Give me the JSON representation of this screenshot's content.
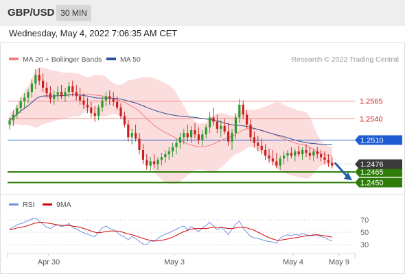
{
  "header": {
    "symbol": "GBP/USD",
    "timeframe": "30 MIN"
  },
  "datetime": "Wednesday, May 4, 2022 7:06:35 AM CET",
  "legend": {
    "ma20": "MA 20 + Bollinger Bands",
    "ma50": "MA 50",
    "copyright": "Research © 2022 Trading Central",
    "rsi": "RSI",
    "rsi_ma": "9MA"
  },
  "colors": {
    "candle_up": "#2b9a2b",
    "candle_down": "#cc1f1f",
    "bollinger_fill": "#fcd7d7",
    "ma20": "#f08080",
    "ma50": "#2e4f99",
    "support": "#2e7d0a",
    "resistance": "#f08a8a",
    "pivot": "#1f5bd1",
    "current": "#3a3a3a",
    "arrow": "#1f5fa8",
    "rsi": "#6f8fe0",
    "rsi_ma": "#d40000"
  },
  "chart_data": [
    {
      "type": "candlestick",
      "title": "GBP/USD 30 MIN",
      "x_ticks": [
        "Apr 30",
        "May 3",
        "May 4",
        "May 9"
      ],
      "ylim": [
        1.2435,
        1.2615
      ],
      "levels": [
        {
          "value": 1.2565,
          "label": "1.2565",
          "kind": "resistance"
        },
        {
          "value": 1.254,
          "label": "1.2540",
          "kind": "resistance"
        },
        {
          "value": 1.251,
          "label": "1.2510",
          "kind": "pivot"
        },
        {
          "value": 1.2465,
          "label": "1.2465",
          "kind": "support"
        },
        {
          "value": 1.245,
          "label": "1.2450",
          "kind": "support"
        }
      ],
      "current_price": {
        "value": 1.2476,
        "label": "1.2476"
      },
      "forecast_arrow": {
        "from": 1.2478,
        "to": 1.2456,
        "direction": "down"
      },
      "candles": [
        [
          1.2532,
          1.2542,
          1.2525,
          1.2538
        ],
        [
          1.2538,
          1.2552,
          1.253,
          1.2546
        ],
        [
          1.2546,
          1.256,
          1.254,
          1.2555
        ],
        [
          1.2555,
          1.257,
          1.2548,
          1.2565
        ],
        [
          1.2565,
          1.2576,
          1.2556,
          1.257
        ],
        [
          1.257,
          1.2582,
          1.2562,
          1.2578
        ],
        [
          1.2578,
          1.2596,
          1.257,
          1.259
        ],
        [
          1.259,
          1.261,
          1.2582,
          1.2602
        ],
        [
          1.2602,
          1.2612,
          1.2588,
          1.2594
        ],
        [
          1.2594,
          1.2604,
          1.2578,
          1.2584
        ],
        [
          1.2584,
          1.2592,
          1.257,
          1.2576
        ],
        [
          1.2576,
          1.2586,
          1.2562,
          1.2568
        ],
        [
          1.2568,
          1.258,
          1.256,
          1.2574
        ],
        [
          1.2574,
          1.2586,
          1.2566,
          1.2578
        ],
        [
          1.2578,
          1.2588,
          1.2568,
          1.2572
        ],
        [
          1.2572,
          1.2584,
          1.2564,
          1.2578
        ],
        [
          1.2578,
          1.2592,
          1.257,
          1.2586
        ],
        [
          1.2586,
          1.2594,
          1.2572,
          1.2578
        ],
        [
          1.2578,
          1.2588,
          1.2566,
          1.2572
        ],
        [
          1.2572,
          1.2584,
          1.256,
          1.2566
        ],
        [
          1.2566,
          1.2576,
          1.2554,
          1.256
        ],
        [
          1.256,
          1.257,
          1.2548,
          1.2556
        ],
        [
          1.2556,
          1.2564,
          1.2542,
          1.2548
        ],
        [
          1.2548,
          1.2558,
          1.2536,
          1.2544
        ],
        [
          1.2544,
          1.256,
          1.2538,
          1.2556
        ],
        [
          1.2556,
          1.2572,
          1.255,
          1.2566
        ],
        [
          1.2566,
          1.2578,
          1.2558,
          1.2572
        ],
        [
          1.2572,
          1.258,
          1.256,
          1.2568
        ],
        [
          1.2568,
          1.2578,
          1.2558,
          1.2564
        ],
        [
          1.2564,
          1.2572,
          1.2552,
          1.2556
        ],
        [
          1.2556,
          1.2562,
          1.254,
          1.2544
        ],
        [
          1.2544,
          1.255,
          1.2528,
          1.2532
        ],
        [
          1.2532,
          1.2538,
          1.2508,
          1.2514
        ],
        [
          1.2514,
          1.2526,
          1.2504,
          1.252
        ],
        [
          1.252,
          1.2532,
          1.2508,
          1.2512
        ],
        [
          1.2512,
          1.252,
          1.249,
          1.2496
        ],
        [
          1.2496,
          1.2504,
          1.2476,
          1.2482
        ],
        [
          1.2482,
          1.249,
          1.2468,
          1.2474
        ],
        [
          1.2474,
          1.2486,
          1.2466,
          1.248
        ],
        [
          1.248,
          1.249,
          1.247,
          1.2476
        ],
        [
          1.2476,
          1.2486,
          1.2468,
          1.2482
        ],
        [
          1.2482,
          1.2492,
          1.2474,
          1.2486
        ],
        [
          1.2486,
          1.2496,
          1.2478,
          1.249
        ],
        [
          1.249,
          1.25,
          1.2482,
          1.2494
        ],
        [
          1.2494,
          1.2506,
          1.2486,
          1.25
        ],
        [
          1.25,
          1.2512,
          1.249,
          1.2506
        ],
        [
          1.2506,
          1.252,
          1.2498,
          1.2514
        ],
        [
          1.2514,
          1.2526,
          1.2504,
          1.252
        ],
        [
          1.252,
          1.2532,
          1.2508,
          1.2514
        ],
        [
          1.2514,
          1.253,
          1.2506,
          1.2524
        ],
        [
          1.2524,
          1.2534,
          1.2512,
          1.2518
        ],
        [
          1.2518,
          1.2528,
          1.2504,
          1.251
        ],
        [
          1.251,
          1.2524,
          1.2502,
          1.2518
        ],
        [
          1.2518,
          1.2532,
          1.2512,
          1.2528
        ],
        [
          1.2528,
          1.255,
          1.252,
          1.2542
        ],
        [
          1.2542,
          1.2556,
          1.253,
          1.2536
        ],
        [
          1.2536,
          1.2546,
          1.252,
          1.2526
        ],
        [
          1.2526,
          1.2538,
          1.2514,
          1.253
        ],
        [
          1.253,
          1.254,
          1.2518,
          1.2522
        ],
        [
          1.2522,
          1.2534,
          1.2502,
          1.2508
        ],
        [
          1.2508,
          1.2526,
          1.2496,
          1.252
        ],
        [
          1.252,
          1.2548,
          1.2512,
          1.2542
        ],
        [
          1.2542,
          1.2568,
          1.2534,
          1.256
        ],
        [
          1.256,
          1.2566,
          1.254,
          1.2546
        ],
        [
          1.2546,
          1.2552,
          1.2526,
          1.2532
        ],
        [
          1.2532,
          1.254,
          1.2508,
          1.2514
        ],
        [
          1.2514,
          1.2522,
          1.25,
          1.2506
        ],
        [
          1.2506,
          1.2516,
          1.2494,
          1.2502
        ],
        [
          1.2502,
          1.2512,
          1.249,
          1.2496
        ],
        [
          1.2496,
          1.2504,
          1.2482,
          1.2488
        ],
        [
          1.2488,
          1.2498,
          1.2478,
          1.2484
        ],
        [
          1.2484,
          1.2496,
          1.2474,
          1.248
        ],
        [
          1.248,
          1.2492,
          1.247,
          1.2474
        ],
        [
          1.2474,
          1.2488,
          1.2468,
          1.2484
        ],
        [
          1.2484,
          1.2494,
          1.2476,
          1.2488
        ],
        [
          1.2488,
          1.2496,
          1.248,
          1.2492
        ],
        [
          1.2492,
          1.25,
          1.2484,
          1.2488
        ],
        [
          1.2488,
          1.2498,
          1.248,
          1.2494
        ],
        [
          1.2494,
          1.2502,
          1.2486,
          1.249
        ],
        [
          1.249,
          1.25,
          1.2482,
          1.2496
        ],
        [
          1.2496,
          1.2504,
          1.2486,
          1.2492
        ],
        [
          1.2492,
          1.25,
          1.2482,
          1.2488
        ],
        [
          1.2488,
          1.2498,
          1.248,
          1.2494
        ],
        [
          1.2494,
          1.25,
          1.2484,
          1.249
        ],
        [
          1.249,
          1.2496,
          1.248,
          1.2486
        ],
        [
          1.2486,
          1.2494,
          1.2476,
          1.2482
        ],
        [
          1.2482,
          1.249,
          1.2472,
          1.2478
        ],
        [
          1.2478,
          1.2486,
          1.247,
          1.2474
        ]
      ]
    },
    {
      "type": "line",
      "title": "RSI",
      "series": [
        {
          "name": "RSI",
          "values": [
            55,
            58,
            62,
            64,
            66,
            69,
            71,
            73,
            68,
            63,
            58,
            56,
            60,
            62,
            59,
            61,
            64,
            58,
            55,
            52,
            49,
            47,
            44,
            43,
            50,
            57,
            60,
            56,
            54,
            50,
            45,
            42,
            38,
            43,
            40,
            35,
            31,
            30,
            36,
            35,
            40,
            44,
            47,
            49,
            52,
            55,
            58,
            60,
            54,
            59,
            55,
            51,
            57,
            61,
            66,
            60,
            54,
            58,
            53,
            46,
            55,
            63,
            68,
            57,
            50,
            43,
            41,
            40,
            38,
            36,
            35,
            34,
            32,
            40,
            44,
            46,
            44,
            47,
            45,
            48,
            46,
            44,
            47,
            45,
            43,
            41,
            38,
            36
          ]
        },
        {
          "name": "9MA",
          "values": [
            54,
            55,
            57,
            58,
            59,
            61,
            63,
            65,
            66,
            66,
            65,
            64,
            63,
            62,
            61,
            61,
            61,
            60,
            59,
            58,
            56,
            54,
            52,
            50,
            49,
            50,
            51,
            52,
            52,
            52,
            51,
            49,
            47,
            46,
            44,
            42,
            40,
            38,
            37,
            36,
            36,
            37,
            38,
            40,
            42,
            45,
            48,
            51,
            53,
            55,
            56,
            56,
            56,
            56,
            57,
            58,
            58,
            58,
            57,
            56,
            56,
            57,
            58,
            58,
            57,
            55,
            53,
            50,
            47,
            44,
            41,
            39,
            37,
            37,
            38,
            39,
            40,
            41,
            42,
            43,
            44,
            45,
            45,
            46,
            45,
            44,
            43,
            42
          ]
        }
      ],
      "ylim": [
        20,
        80
      ],
      "levels": [
        70,
        50,
        30
      ],
      "level_labels": [
        "70",
        "50",
        "30"
      ]
    }
  ]
}
